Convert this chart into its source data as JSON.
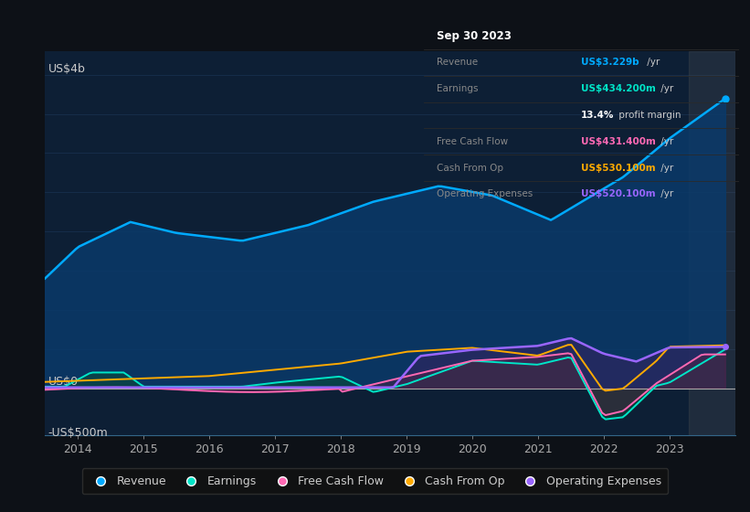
{
  "bg_color": "#0d1117",
  "plot_bg_color": "#0d1f35",
  "grid_color": "#1e3a5f",
  "ylim": [
    -600,
    4300
  ],
  "xlim": [
    2013.5,
    2024.0
  ],
  "revenue_color": "#00aaff",
  "earnings_color": "#00e5c8",
  "fcf_color": "#ff69b4",
  "cashfromop_color": "#ffaa00",
  "opex_color": "#9966ff",
  "revenue_fill_color": "#0a3a6a",
  "earnings_fill_color": "#0a4a3a",
  "fcf_fill_color": "#5a2040",
  "opex_fill_color": "#3a2060",
  "tooltip": {
    "date": "Sep 30 2023",
    "revenue_label": "Revenue",
    "revenue_val": "US$3.229b /yr",
    "earnings_label": "Earnings",
    "earnings_val": "US$434.200m /yr",
    "margin_val": "13.4% profit margin",
    "fcf_label": "Free Cash Flow",
    "fcf_val": "US$431.400m /yr",
    "cashop_label": "Cash From Op",
    "cashop_val": "US$530.100m /yr",
    "opex_label": "Operating Expenses",
    "opex_val": "US$520.100m /yr"
  },
  "legend": [
    {
      "label": "Revenue",
      "color": "#00aaff"
    },
    {
      "label": "Earnings",
      "color": "#00e5c8"
    },
    {
      "label": "Free Cash Flow",
      "color": "#ff69b4"
    },
    {
      "label": "Cash From Op",
      "color": "#ffaa00"
    },
    {
      "label": "Operating Expenses",
      "color": "#9966ff"
    }
  ]
}
